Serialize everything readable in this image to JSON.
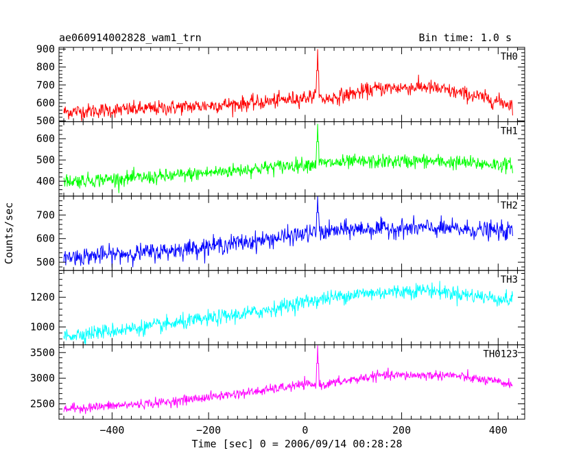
{
  "chart_data": {
    "type": "line",
    "title_left": "ae060914002828_wam1_trn",
    "title_right": "Bin time: 1.0 s",
    "xlabel": "Time [sec] 0 = 2006/09/14 00:28:28",
    "ylabel": "Counts/sec",
    "xlim": [
      -510,
      455
    ],
    "xticks": [
      -400,
      -200,
      0,
      200,
      400
    ],
    "x_range": [
      -500,
      430
    ],
    "bin_time": 1.0,
    "grid": false,
    "panels": [
      {
        "label": "TH0",
        "color": "#ff0000",
        "ylim": [
          495,
          910
        ],
        "yticks": [
          500,
          600,
          700,
          800,
          900
        ],
        "trend": [
          [
            -500,
            550
          ],
          [
            -300,
            570
          ],
          [
            -100,
            600
          ],
          [
            0,
            630
          ],
          [
            20,
            640
          ],
          [
            40,
            620
          ],
          [
            150,
            680
          ],
          [
            250,
            690
          ],
          [
            350,
            640
          ],
          [
            430,
            590
          ]
        ],
        "noise": 50,
        "spike": {
          "x": 26,
          "y": 900
        }
      },
      {
        "label": "TH1",
        "color": "#00ff00",
        "ylim": [
          330,
          680
        ],
        "yticks": [
          400,
          500,
          600
        ],
        "trend": [
          [
            -500,
            400
          ],
          [
            -300,
            420
          ],
          [
            -100,
            460
          ],
          [
            0,
            480
          ],
          [
            100,
            490
          ],
          [
            250,
            495
          ],
          [
            430,
            475
          ]
        ],
        "noise": 40,
        "spike": {
          "x": 26,
          "y": 670
        }
      },
      {
        "label": "TH2",
        "color": "#0000ff",
        "ylim": [
          465,
          780
        ],
        "yticks": [
          500,
          600,
          700
        ],
        "trend": [
          [
            -500,
            520
          ],
          [
            -300,
            545
          ],
          [
            -100,
            590
          ],
          [
            0,
            620
          ],
          [
            100,
            640
          ],
          [
            250,
            645
          ],
          [
            430,
            630
          ]
        ],
        "noise": 45,
        "spike": {
          "x": 26,
          "y": 780
        }
      },
      {
        "label": "TH3",
        "color": "#00ffff",
        "ylim": [
          880,
          1380
        ],
        "yticks": [
          1000,
          1200
        ],
        "trend": [
          [
            -500,
            940
          ],
          [
            -300,
            1010
          ],
          [
            -100,
            1100
          ],
          [
            0,
            1170
          ],
          [
            100,
            1220
          ],
          [
            250,
            1250
          ],
          [
            430,
            1180
          ]
        ],
        "noise": 60
      },
      {
        "label": "TH0123",
        "color": "#ff00ff",
        "ylim": [
          2200,
          3650
        ],
        "yticks": [
          2500,
          3000,
          3500
        ],
        "trend": [
          [
            -500,
            2400
          ],
          [
            -300,
            2520
          ],
          [
            -100,
            2740
          ],
          [
            0,
            2880
          ],
          [
            30,
            2860
          ],
          [
            150,
            3050
          ],
          [
            300,
            3060
          ],
          [
            430,
            2880
          ]
        ],
        "noise": 110,
        "spike": {
          "x": 26,
          "y": 3640
        }
      }
    ]
  }
}
